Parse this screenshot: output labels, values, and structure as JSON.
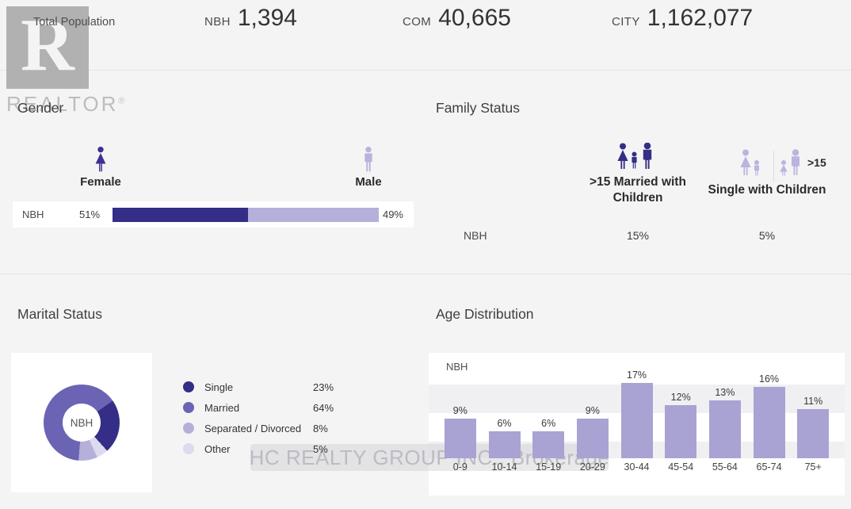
{
  "header": {
    "label": "Total Population",
    "stats": [
      {
        "scope": "NBH",
        "value": "1,394"
      },
      {
        "scope": "COM",
        "value": "40,665"
      },
      {
        "scope": "CITY",
        "value": "1,162,077"
      }
    ]
  },
  "branding": {
    "logo_letter": "R",
    "logo_text": "REALTOR",
    "reg_mark": "®"
  },
  "watermark": "HC REALTY GROUP INC., Brokerage",
  "sections": {
    "family_status": {
      "married_label": ">15 Married with Children",
      "single_badge": ">15",
      "single_label": "Single with Children"
    }
  },
  "chart_data": [
    {
      "id": "gender",
      "type": "bar",
      "title": "Gender",
      "series_label": "NBH",
      "categories": [
        "Female",
        "Male"
      ],
      "values": [
        51,
        49
      ],
      "unit": "%",
      "colors": [
        "#342e86",
        "#b4b0da"
      ]
    },
    {
      "id": "family_status",
      "type": "table",
      "title": "Family Status",
      "series_label": "NBH",
      "categories": [
        ">15 Married with Children",
        "Single with Children"
      ],
      "values": [
        15,
        5
      ],
      "unit": "%"
    },
    {
      "id": "marital_status",
      "type": "pie",
      "title": "Marital Status",
      "center_label": "NBH",
      "categories": [
        "Single",
        "Married",
        "Separated / Divorced",
        "Other"
      ],
      "values": [
        23,
        64,
        8,
        5
      ],
      "unit": "%",
      "colors": [
        "#342e86",
        "#6b64b4",
        "#b4b0da",
        "#dcdaee"
      ],
      "legend_position": "right",
      "segment_order_clockwise": [
        "Single",
        "Other",
        "Separated / Divorced",
        "Married"
      ],
      "start_angle_deg": 55
    },
    {
      "id": "age_distribution",
      "type": "bar",
      "title": "Age Distribution",
      "series_label": "NBH",
      "categories": [
        "0-9",
        "10-14",
        "15-19",
        "20-29",
        "30-44",
        "45-54",
        "55-64",
        "65-74",
        "75+"
      ],
      "values": [
        9,
        6,
        6,
        9,
        17,
        12,
        13,
        16,
        11
      ],
      "unit": "%",
      "ylim": [
        0,
        17
      ],
      "bar_color": "#a8a3d2",
      "grid": "striped"
    }
  ],
  "colors": {
    "accent_dark": "#342e86",
    "accent_medium": "#6b64b4",
    "accent_light": "#b4b0da",
    "accent_faint": "#dcdaee",
    "age_bar": "#a8a3d2",
    "page_bg": "#f4f4f5",
    "card_bg": "#ffffff"
  }
}
